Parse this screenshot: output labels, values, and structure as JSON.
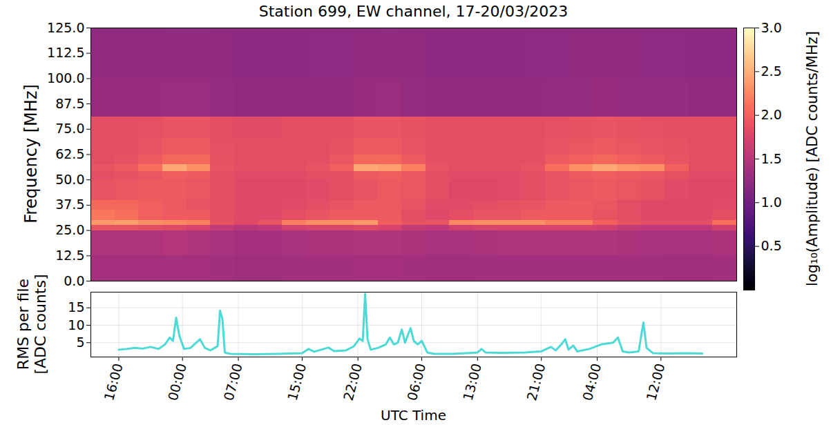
{
  "chart_data": [
    {
      "type": "heatmap",
      "title": "Station 699, EW channel, 17-20/03/2023",
      "ylabel": "Frequency [MHz]",
      "color": "magma",
      "tick_labels": "y",
      "xlim": [
        12.5,
        93.5
      ],
      "ylim": [
        0,
        125
      ],
      "yticks": [
        {
          "value": 0,
          "label": "0.0"
        },
        12.5,
        {
          "value": 25,
          "label": "25.0"
        },
        37.5,
        {
          "value": 50,
          "label": "50.0"
        },
        62.5,
        {
          "value": 75,
          "label": "75.0"
        },
        87.5,
        {
          "value": 100,
          "label": "100.0"
        },
        112.5,
        {
          "value": 125,
          "label": "125.0"
        }
      ],
      "x_edges": [
        12.5,
        15.5,
        18.5,
        21.5,
        24.5,
        27.5,
        30.5,
        33.5,
        36.5,
        39.5,
        42.5,
        45.5,
        48.5,
        51.5,
        54.5,
        57.5,
        60.5,
        63.5,
        66.5,
        69.5,
        72.5,
        75.5,
        78.5,
        81.5,
        84.5,
        87.5,
        90.5,
        93.5
      ],
      "y_edges": [
        0,
        12.5,
        25,
        27.5,
        30,
        35,
        40,
        50,
        54,
        57.5,
        62.5,
        70,
        81,
        100,
        125
      ],
      "cells": [
        [
          1.38,
          1.38,
          1.38,
          1.38,
          1.38,
          1.35,
          1.33,
          1.33,
          1.35,
          1.36,
          1.36,
          1.38,
          1.38,
          1.36,
          1.34,
          1.34,
          1.35,
          1.36,
          1.36,
          1.37,
          1.37,
          1.37,
          1.36,
          1.35,
          1.34,
          1.34,
          1.36
        ],
        [
          1.45,
          1.45,
          1.45,
          1.48,
          1.45,
          1.4,
          1.38,
          1.38,
          1.4,
          1.42,
          1.42,
          1.45,
          1.45,
          1.42,
          1.4,
          1.4,
          1.42,
          1.45,
          1.45,
          1.45,
          1.45,
          1.45,
          1.42,
          1.4,
          1.4,
          1.4,
          1.42
        ],
        [
          1.9,
          1.9,
          1.85,
          1.8,
          1.75,
          1.6,
          1.5,
          1.55,
          1.7,
          1.75,
          1.75,
          1.8,
          1.75,
          1.6,
          1.55,
          1.7,
          1.75,
          1.75,
          1.75,
          1.75,
          1.75,
          1.7,
          1.6,
          1.55,
          1.55,
          1.55,
          1.7
        ],
        [
          2.35,
          2.4,
          2.3,
          2.25,
          2.2,
          1.9,
          1.8,
          1.9,
          2.2,
          2.3,
          2.3,
          2.35,
          2.0,
          1.9,
          1.9,
          2.25,
          2.3,
          2.3,
          2.3,
          2.2,
          2.2,
          2.0,
          1.9,
          1.85,
          1.85,
          1.85,
          2.1
        ],
        [
          2.15,
          2.1,
          2.0,
          1.95,
          1.95,
          1.85,
          1.8,
          1.8,
          1.85,
          1.9,
          1.95,
          1.95,
          1.95,
          1.85,
          1.8,
          1.85,
          1.9,
          1.9,
          1.95,
          1.95,
          1.95,
          1.9,
          1.85,
          1.8,
          1.8,
          1.8,
          1.85
        ],
        [
          2.05,
          2.05,
          2.0,
          1.95,
          1.9,
          1.85,
          1.8,
          1.8,
          1.82,
          1.85,
          1.9,
          1.95,
          1.95,
          1.9,
          1.82,
          1.82,
          1.85,
          1.88,
          1.9,
          1.95,
          1.95,
          1.92,
          1.85,
          1.8,
          1.8,
          1.8,
          1.82
        ],
        [
          1.9,
          1.92,
          1.95,
          1.95,
          1.92,
          1.85,
          1.8,
          1.8,
          1.8,
          1.82,
          1.85,
          1.9,
          1.95,
          1.92,
          1.85,
          1.8,
          1.8,
          1.82,
          1.85,
          1.9,
          1.92,
          1.95,
          1.92,
          1.88,
          1.82,
          1.8,
          1.8
        ],
        [
          1.85,
          1.88,
          1.92,
          1.98,
          1.95,
          1.85,
          1.82,
          1.82,
          1.82,
          1.84,
          1.86,
          1.95,
          1.98,
          1.92,
          1.85,
          1.82,
          1.82,
          1.82,
          1.85,
          1.9,
          1.95,
          1.98,
          1.95,
          1.92,
          1.88,
          1.82,
          1.82
        ],
        [
          1.9,
          1.95,
          2.1,
          2.45,
          2.3,
          1.9,
          1.85,
          1.85,
          1.85,
          1.9,
          2.0,
          2.45,
          2.4,
          2.2,
          1.9,
          1.85,
          1.85,
          1.85,
          1.9,
          2.1,
          2.3,
          2.45,
          2.35,
          2.3,
          2.0,
          1.85,
          1.85
        ],
        [
          1.85,
          1.88,
          1.95,
          2.05,
          2.05,
          1.88,
          1.85,
          1.85,
          1.85,
          1.86,
          1.92,
          2.05,
          2.05,
          1.95,
          1.86,
          1.84,
          1.84,
          1.85,
          1.86,
          1.95,
          2.0,
          2.05,
          2.0,
          1.95,
          1.9,
          1.84,
          1.84
        ],
        [
          1.85,
          1.86,
          1.9,
          1.95,
          1.95,
          1.87,
          1.85,
          1.85,
          1.85,
          1.86,
          1.88,
          1.95,
          1.95,
          1.9,
          1.86,
          1.85,
          1.85,
          1.85,
          1.86,
          1.9,
          1.92,
          1.95,
          1.92,
          1.9,
          1.88,
          1.85,
          1.85
        ],
        [
          1.85,
          1.85,
          1.87,
          1.9,
          1.9,
          1.85,
          1.83,
          1.83,
          1.84,
          1.85,
          1.86,
          1.9,
          1.9,
          1.88,
          1.85,
          1.84,
          1.84,
          1.84,
          1.85,
          1.87,
          1.88,
          1.9,
          1.88,
          1.87,
          1.86,
          1.84,
          1.84
        ],
        [
          1.28,
          1.28,
          1.28,
          1.3,
          1.3,
          1.26,
          1.24,
          1.24,
          1.24,
          1.25,
          1.25,
          1.28,
          1.3,
          1.26,
          1.24,
          1.24,
          1.24,
          1.25,
          1.25,
          1.26,
          1.27,
          1.28,
          1.27,
          1.26,
          1.26,
          1.24,
          1.24
        ],
        [
          1.22,
          1.22,
          1.22,
          1.24,
          1.24,
          1.22,
          1.2,
          1.2,
          1.2,
          1.21,
          1.21,
          1.22,
          1.24,
          1.22,
          1.2,
          1.2,
          1.2,
          1.2,
          1.21,
          1.21,
          1.22,
          1.22,
          1.22,
          1.21,
          1.21,
          1.2,
          1.2
        ]
      ],
      "colorbar_range": [
        0,
        3
      ],
      "colorbar_ticks": [
        0.5,
        {
          "value": 1,
          "label": "1.0"
        },
        1.5,
        {
          "value": 2,
          "label": "2.0"
        },
        2.5,
        {
          "value": 3,
          "label": "3.0"
        }
      ],
      "colorbar_label": "log₁₀(Amplitude) [ADC counts/MHz]"
    },
    {
      "type": "line",
      "xlabel": "UTC Time",
      "ylabel": "RMS per file [ADC counts]",
      "color": "#4dd9d6",
      "grid": true,
      "xlim": [
        12.5,
        93.5
      ],
      "xticks": [
        {
          "value": 16,
          "label": "16:00"
        },
        {
          "value": 24,
          "label": "00:00"
        },
        {
          "value": 31,
          "label": "07:00"
        },
        {
          "value": 39,
          "label": "15:00"
        },
        {
          "value": 46,
          "label": "22:00"
        },
        {
          "value": 54,
          "label": "06:00"
        },
        {
          "value": 61,
          "label": "13:00"
        },
        {
          "value": 69,
          "label": "21:00"
        },
        {
          "value": 76,
          "label": "04:00"
        },
        {
          "value": 84,
          "label": "12:00"
        }
      ],
      "ylim": [
        0.9,
        19.5
      ],
      "yticks": [
        5,
        10,
        15
      ],
      "x": [
        16,
        17,
        18,
        19,
        20,
        21,
        21.8,
        22.4,
        22.8,
        23.2,
        23.6,
        24.2,
        25,
        26.2,
        26.8,
        27.5,
        28.4,
        28.7,
        29,
        29.3,
        30,
        33,
        36,
        39,
        39.8,
        40.5,
        42.3,
        43,
        44.5,
        45.5,
        46.2,
        46.6,
        46.9,
        47.2,
        47.6,
        48.5,
        49.5,
        50,
        50.5,
        51,
        51.5,
        51.9,
        52.6,
        53,
        53.5,
        54,
        54.7,
        55.5,
        58,
        61,
        61.5,
        62,
        64,
        67,
        69,
        70.2,
        70.8,
        71.5,
        72,
        72.4,
        73,
        73.5,
        75,
        76.5,
        78,
        78.6,
        79.2,
        80,
        81.2,
        81.8,
        82.2,
        83,
        85,
        87,
        89.2
      ],
      "values": [
        3.0,
        3.2,
        3.5,
        3.3,
        3.8,
        3.2,
        4.5,
        6.5,
        5.5,
        12.2,
        7,
        3.2,
        3.5,
        6,
        3.5,
        2.8,
        4,
        14.2,
        11.8,
        2.2,
        1.8,
        1.7,
        1.8,
        2.0,
        3.2,
        2.4,
        3.6,
        2.6,
        2.8,
        4,
        6.2,
        5.5,
        19,
        6,
        3,
        3.5,
        4.5,
        6.5,
        4.5,
        5,
        8.8,
        5,
        9.2,
        5.5,
        4.5,
        5.5,
        2.2,
        1.8,
        1.8,
        2.2,
        3.2,
        2.2,
        2.1,
        2.2,
        2.5,
        3.8,
        2.8,
        4.5,
        6,
        3,
        4.2,
        2.5,
        3.2,
        4.5,
        5,
        6.5,
        2.5,
        2.2,
        2.5,
        10.8,
        3.5,
        2,
        1.9,
        2,
        1.9
      ]
    }
  ]
}
